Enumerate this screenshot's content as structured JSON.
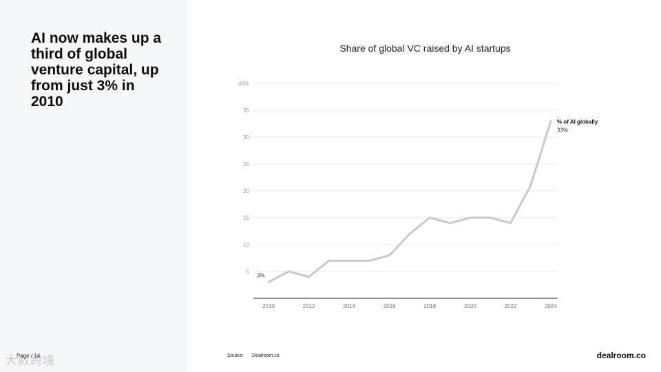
{
  "headline": "AI now makes up a third of global venture capital, up from just 3% in 2010",
  "page_number": "Page / 14",
  "watermark": "大数跨境",
  "source": {
    "label": "Source:",
    "value": "Dealroom.co"
  },
  "brand": "dealroom.co",
  "chart_data": {
    "type": "line",
    "title": "Share of global VC raised by AI startups",
    "xlabel": "",
    "ylabel": "",
    "x": [
      2010,
      2011,
      2012,
      2013,
      2014,
      2015,
      2016,
      2017,
      2018,
      2019,
      2020,
      2021,
      2022,
      2023,
      2024
    ],
    "x_ticks": [
      2010,
      2012,
      2014,
      2016,
      2018,
      2020,
      2022,
      2024
    ],
    "y_ticks": [
      {
        "value": 40,
        "label": "40%"
      },
      {
        "value": 35,
        "label": "35"
      },
      {
        "value": 30,
        "label": "30"
      },
      {
        "value": 25,
        "label": "25"
      },
      {
        "value": 20,
        "label": "20"
      },
      {
        "value": 15,
        "label": "15"
      },
      {
        "value": 10,
        "label": "10"
      },
      {
        "value": 5,
        "label": "5"
      }
    ],
    "ylim": [
      0,
      40
    ],
    "grid": true,
    "series": [
      {
        "name": "% of AI globally",
        "values": [
          3,
          5,
          4,
          7,
          7,
          7,
          8,
          12,
          15,
          14,
          15,
          15,
          14,
          21,
          33
        ],
        "color": "#c8c8c8"
      }
    ],
    "annotations": {
      "start_label": "3%",
      "end_label": "33%"
    }
  }
}
